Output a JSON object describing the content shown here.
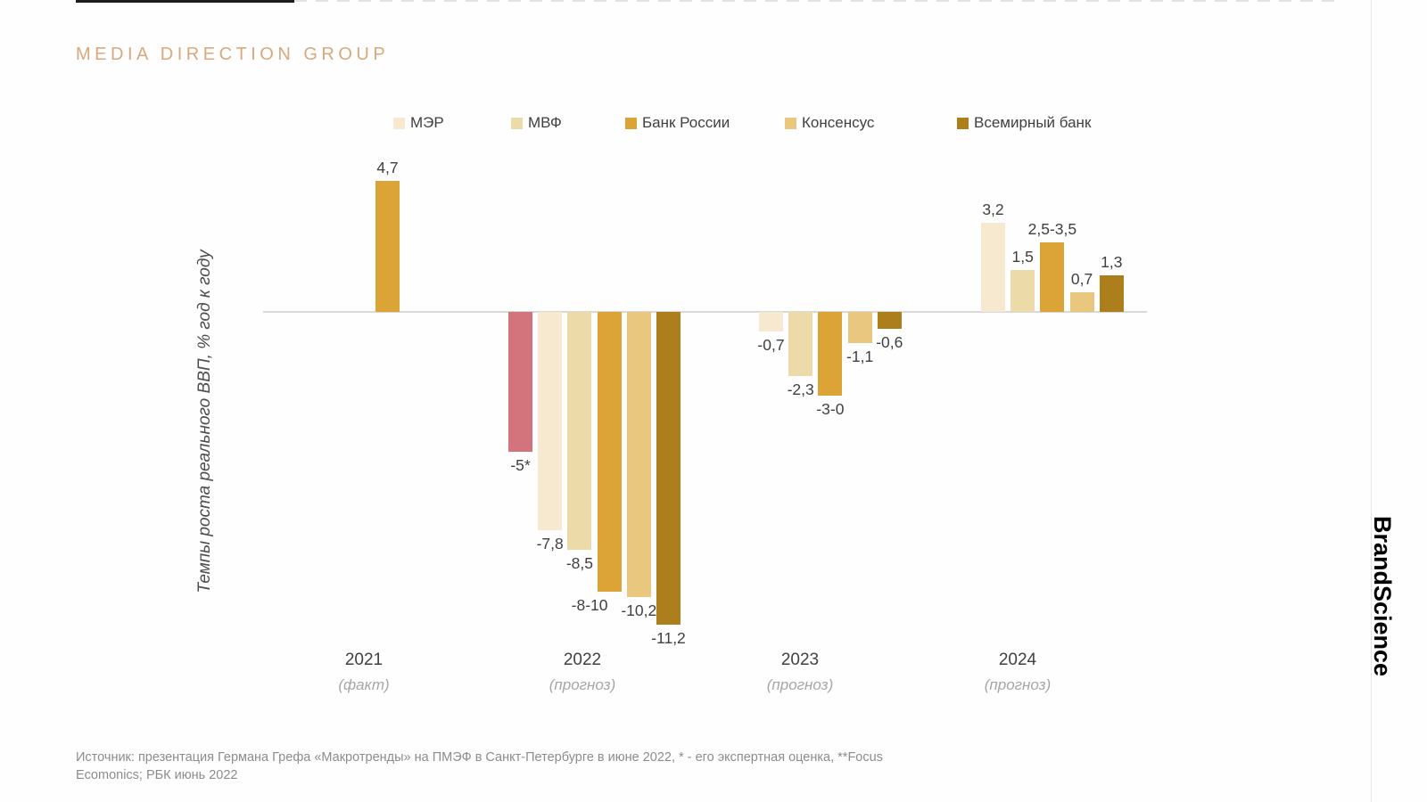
{
  "brand": {
    "logo_text": "MEDIA DIRECTION GROUP",
    "watermark": "BrandScience"
  },
  "legend": {
    "items": [
      {
        "label": "МЭР",
        "color": "#f6e9cf"
      },
      {
        "label": "МВФ",
        "color": "#eddaa9"
      },
      {
        "label": "Банк России",
        "color": "#dca436"
      },
      {
        "label": "Консенсус",
        "color": "#eac77f"
      },
      {
        "label": "Всемирный банк",
        "color": "#ad7e1c"
      }
    ]
  },
  "chart_data": {
    "type": "bar",
    "title": "",
    "ylabel": "Темпы роста реального ВВП, % год к году",
    "unit": "% год к году",
    "grid": false,
    "legend_position": "top",
    "zero_baseline": true,
    "series_names": [
      "МЭР",
      "МВФ",
      "Банк России",
      "Консенсус",
      "Всемирный банк"
    ],
    "colors": {
      "mer": "#f6e9cf",
      "imf": "#eddaa9",
      "bank": "#dca436",
      "consensus": "#eac77f",
      "worldbank": "#ad7e1c",
      "gref": "#d3737c"
    },
    "groups": [
      {
        "year": "2021",
        "note": "(факт)",
        "bars": [
          {
            "series": "Банк России (факт)",
            "label": "4,7",
            "value": 4.7,
            "color_key": "bank"
          }
        ]
      },
      {
        "year": "2022",
        "note": "(прогноз)",
        "bars": [
          {
            "series": "экспертная оценка Грефа",
            "label": "-5*",
            "value": -5,
            "color_key": "gref"
          },
          {
            "series": "МЭР",
            "label": "-7,8",
            "value": -7.8,
            "color_key": "mer"
          },
          {
            "series": "МВФ",
            "label": "-8,5",
            "value": -8.5,
            "color_key": "imf"
          },
          {
            "series": "Банк России",
            "label": "-8-10",
            "value": -10,
            "color_key": "bank"
          },
          {
            "series": "Консенсус",
            "label": "-10,2",
            "value": -10.2,
            "color_key": "consensus"
          },
          {
            "series": "Всемирный банк",
            "label": "-11,2",
            "value": -11.2,
            "color_key": "worldbank"
          }
        ]
      },
      {
        "year": "2023",
        "note": "(прогноз)",
        "bars": [
          {
            "series": "МЭР",
            "label": "-0,7",
            "value": -0.7,
            "color_key": "mer"
          },
          {
            "series": "МВФ",
            "label": "-2,3",
            "value": -2.3,
            "color_key": "imf"
          },
          {
            "series": "Банк России",
            "label": "-3-0",
            "value": -3,
            "color_key": "bank"
          },
          {
            "series": "Консенсус",
            "label": "-1,1",
            "value": -1.1,
            "color_key": "consensus"
          },
          {
            "series": "Всемирный банк",
            "label": "-0,6",
            "value": -0.6,
            "color_key": "worldbank"
          }
        ]
      },
      {
        "year": "2024",
        "note": "(прогноз)",
        "bars": [
          {
            "series": "МЭР",
            "label": "3,2",
            "value": 3.2,
            "color_key": "mer"
          },
          {
            "series": "МВФ",
            "label": "1,5",
            "value": 1.5,
            "color_key": "imf"
          },
          {
            "series": "Банк России",
            "label": "2,5-3,5",
            "value": 2.5,
            "color_key": "bank"
          },
          {
            "series": "Консенсус",
            "label": "0,7",
            "value": 0.7,
            "color_key": "consensus"
          },
          {
            "series": "Всемирный банк",
            "label": "1,3",
            "value": 1.3,
            "color_key": "worldbank"
          }
        ]
      }
    ]
  },
  "source": {
    "line1": "Источник: презентация Германа Грефа «Макротренды» на ПМЭФ в Санкт-Петербурге в июне 2022, * - его экспертная оценка, **Focus",
    "line2": "Ecomonics; РБК июнь 2022"
  }
}
